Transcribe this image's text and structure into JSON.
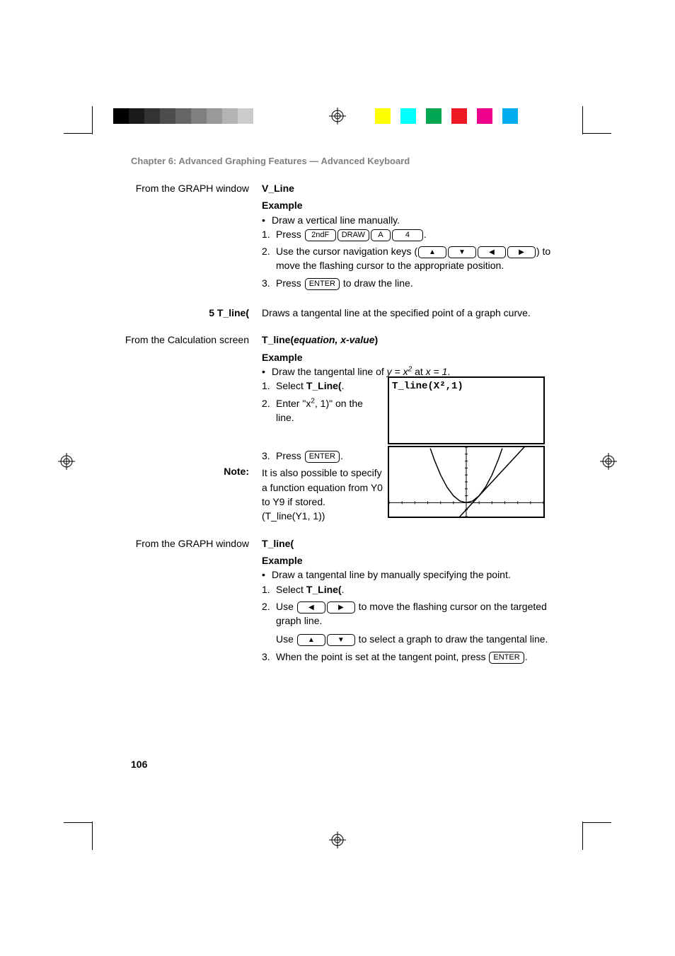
{
  "crop_marks": {
    "short_len": 40,
    "gap": 5
  },
  "reg_mark_color": "#000000",
  "gray_bar_colors": [
    "#000000",
    "#1a1a1a",
    "#333333",
    "#4d4d4d",
    "#666666",
    "#808080",
    "#999999",
    "#b3b3b3",
    "#cccccc",
    "#ffffff"
  ],
  "color_bar_colors": [
    "#ffff00",
    "#00ffff",
    "#00a651",
    "#ed1c24",
    "#ec008c",
    "#00aeef"
  ],
  "chapter_title": "Chapter 6: Advanced Graphing Features — Advanced Keyboard",
  "page_number": "106",
  "sections": {
    "vline": {
      "margin": "From the GRAPH window",
      "heading": "V_Line",
      "example_label": "Example",
      "bullet": "Draw a vertical line manually.",
      "step1_pre": "Press ",
      "step1_keys": [
        "2ndF",
        "DRAW",
        "A",
        "4"
      ],
      "step2_pre": "Use the cursor navigation keys (",
      "step2_post": ") to move the flashing cursor to the appropriate position.",
      "step3_pre": "Press ",
      "step3_key": "ENTER",
      "step3_post": " to draw the line."
    },
    "tline_intro": {
      "margin": "5 T_line(",
      "text": "Draws a tangental line at the specified point of a graph curve."
    },
    "tline_calc": {
      "margin": "From the Calculation screen",
      "heading_pre": "T_line(",
      "heading_args": "equation, x-value",
      "heading_post": ")",
      "example_label": "Example",
      "bullet_pre": "Draw the tangental line of ",
      "bullet_eq1": "y = x",
      "bullet_eq_sup": "2",
      "bullet_mid": " at ",
      "bullet_eq2": "x = 1",
      "bullet_post": ".",
      "step1_pre": "Select ",
      "step1_bold": "T_Line(",
      "step1_post": ".",
      "step2_pre": "Enter \"x",
      "step2_sup": "2",
      "step2_post": ", 1)\" on the line.",
      "step3_pre": "Press ",
      "step3_key": "ENTER",
      "step3_post": ".",
      "note_label": "Note:",
      "note_text": "It is also possible to specify a function equation from Y0 to Y9 if stored.",
      "note_code": "(T_line(Y1, 1))",
      "screen_text": "T_line(X²,1)"
    },
    "tline_graph": {
      "margin": "From the GRAPH window",
      "heading": "T_line(",
      "example_label": "Example",
      "bullet": "Draw a tangental line by manually specifying the point.",
      "step1_pre": "Select ",
      "step1_bold": "T_Line(",
      "step1_post": ".",
      "step2_pre": "Use ",
      "step2_post": " to move the flashing cursor on the targeted graph line.",
      "step2b_pre": "Use ",
      "step2b_post": " to select a graph to draw the tangental line.",
      "step3_pre": "When the point is set at the tangent point, press ",
      "step3_key": "ENTER",
      "step3_post": "."
    }
  },
  "graph": {
    "bg": "#ffffff",
    "axis_color": "#000000",
    "curve_color": "#000000",
    "tangent_color": "#000000",
    "xlim": [
      -6,
      6
    ],
    "ylim": [
      -2,
      8
    ],
    "tick_step": 1,
    "curve_points": [
      [
        -2.8,
        7.84
      ],
      [
        -2.5,
        6.25
      ],
      [
        -2,
        4
      ],
      [
        -1.5,
        2.25
      ],
      [
        -1,
        1
      ],
      [
        -0.5,
        0.25
      ],
      [
        0,
        0
      ],
      [
        0.5,
        0.25
      ],
      [
        1,
        1
      ],
      [
        1.5,
        2.25
      ],
      [
        2,
        4
      ],
      [
        2.5,
        6.25
      ],
      [
        2.8,
        7.84
      ]
    ],
    "tangent_line": {
      "from": [
        -3.5,
        -8
      ],
      "to": [
        5,
        9
      ]
    }
  }
}
